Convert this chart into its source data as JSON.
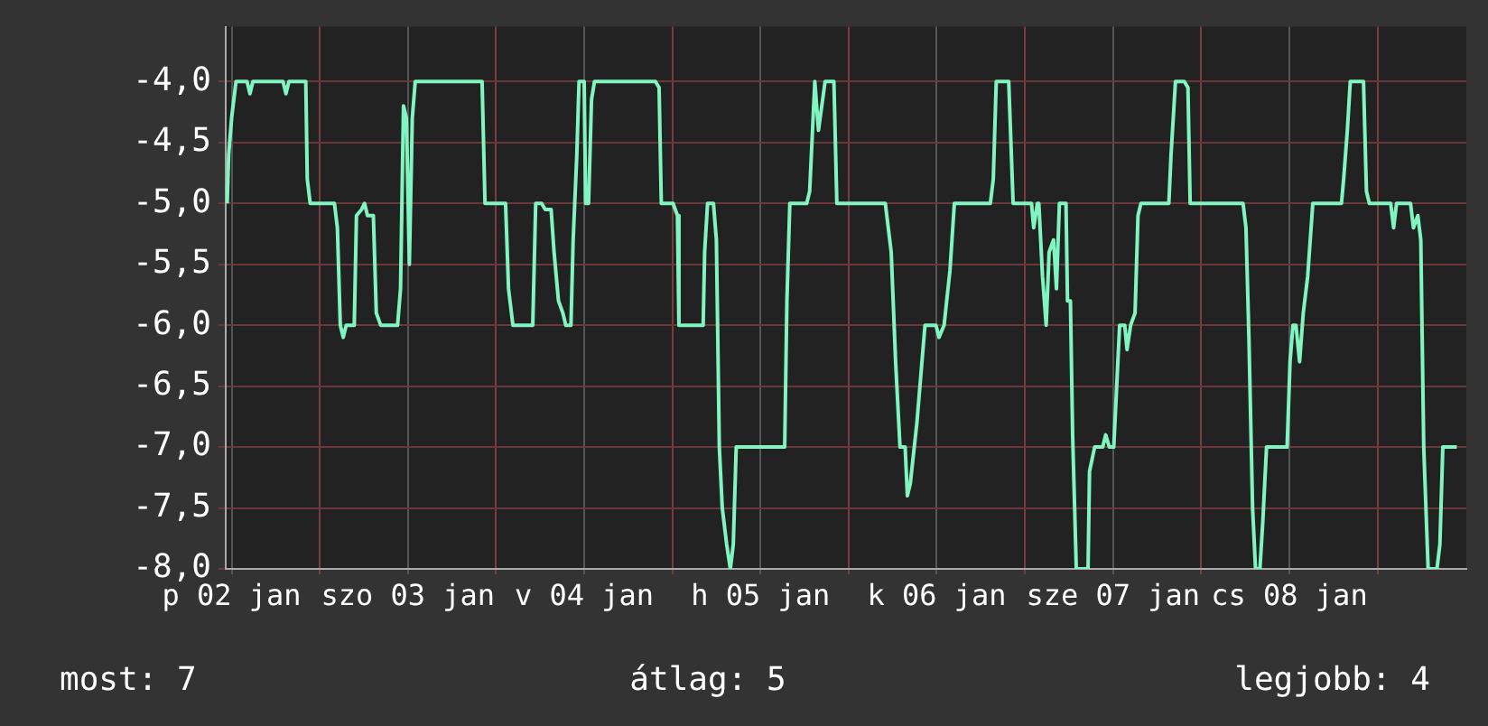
{
  "chart_data": {
    "type": "line",
    "x": [
      "--01-02T11:24",
      "--01-02T11:36",
      "--01-02T12:00",
      "--01-02T12:36",
      "--01-02T14:06",
      "--01-02T14:30",
      "--01-02T14:54",
      "--01-02T19:00",
      "--01-02T19:24",
      "--01-02T19:48",
      "--01-02T22:06",
      "--01-02T22:18",
      "--01-02T22:42",
      "--01-03T02:00",
      "--01-03T02:24",
      "--01-03T02:48",
      "--01-03T03:12",
      "--01-03T03:36",
      "--01-03T04:42",
      "--01-03T05:00",
      "--01-03T05:42",
      "--01-03T06:06",
      "--01-03T06:30",
      "--01-03T07:18",
      "--01-03T07:42",
      "--01-03T08:18",
      "--01-03T10:36",
      "--01-03T11:00",
      "--01-03T11:24",
      "--01-03T11:48",
      "--01-03T12:12",
      "--01-03T12:36",
      "--01-03T13:00",
      "--01-03T22:06",
      "--01-03T22:30",
      "--01-04T01:18",
      "--01-04T01:42",
      "--01-04T02:18",
      "--01-04T05:00",
      "--01-04T05:24",
      "--01-04T06:12",
      "--01-04T06:42",
      "--01-04T07:30",
      "--01-04T07:54",
      "--01-04T08:30",
      "--01-04T09:06",
      "--01-04T09:30",
      "--01-04T10:12",
      "--01-04T10:30",
      "--01-04T11:00",
      "--01-04T11:18",
      "--01-04T12:00",
      "--01-04T12:12",
      "--01-04T12:36",
      "--01-04T13:00",
      "--01-04T13:24",
      "--01-04T21:42",
      "--01-04T22:12",
      "--01-04T22:30",
      "--01-05T00:06",
      "--01-05T00:42",
      "--01-05T00:54",
      "--01-05T04:12",
      "--01-05T04:24",
      "--01-05T04:48",
      "--01-05T05:36",
      "--01-05T06:00",
      "--01-05T06:24",
      "--01-05T06:48",
      "--01-05T07:24",
      "--01-05T07:54",
      "--01-05T08:18",
      "--01-05T08:42",
      "--01-05T15:18",
      "--01-05T15:36",
      "--01-05T16:00",
      "--01-05T18:18",
      "--01-05T18:42",
      "--01-05T19:24",
      "--01-05T19:54",
      "--01-05T20:48",
      "--01-05T22:00",
      "--01-05T22:24",
      "--01-06T05:00",
      "--01-06T05:48",
      "--01-06T06:24",
      "--01-06T07:00",
      "--01-06T07:42",
      "--01-06T08:00",
      "--01-06T08:24",
      "--01-06T09:18",
      "--01-06T10:24",
      "--01-06T11:54",
      "--01-06T12:18",
      "--01-06T13:00",
      "--01-06T13:48",
      "--01-06T14:24",
      "--01-06T19:18",
      "--01-06T19:42",
      "--01-06T20:06",
      "--01-06T21:48",
      "--01-06T22:24",
      "--01-07T00:54",
      "--01-07T01:12",
      "--01-07T01:42",
      "--01-07T01:54",
      "--01-07T02:24",
      "--01-07T02:54",
      "--01-07T03:18",
      "--01-07T03:54",
      "--01-07T04:18",
      "--01-07T04:42",
      "--01-07T05:36",
      "--01-07T05:48",
      "--01-07T06:12",
      "--01-07T06:30",
      "--01-07T07:00",
      "--01-07T08:36",
      "--01-07T08:48",
      "--01-07T09:30",
      "--01-07T10:36",
      "--01-07T11:00",
      "--01-07T11:30",
      "--01-07T12:06",
      "--01-07T12:30",
      "--01-07T12:54",
      "--01-07T13:36",
      "--01-07T13:54",
      "--01-07T14:24",
      "--01-07T15:00",
      "--01-07T15:24",
      "--01-07T15:48",
      "--01-07T19:36",
      "--01-07T19:54",
      "--01-07T20:30",
      "--01-07T21:42",
      "--01-07T22:12",
      "--01-07T22:30",
      "--01-08T05:42",
      "--01-08T06:06",
      "--01-08T06:30",
      "--01-08T07:00",
      "--01-08T07:24",
      "--01-08T08:00",
      "--01-08T08:24",
      "--01-08T08:54",
      "--01-08T11:42",
      "--01-08T12:06",
      "--01-08T12:30",
      "--01-08T12:54",
      "--01-08T13:24",
      "--01-08T13:54",
      "--01-08T14:30",
      "--01-08T15:12",
      "--01-08T19:06",
      "--01-08T19:24",
      "--01-08T19:54",
      "--01-08T20:18",
      "--01-08T22:06",
      "--01-08T22:30",
      "--01-08T22:54",
      "--01-09T01:48",
      "--01-09T02:12",
      "--01-09T02:36",
      "--01-09T04:30",
      "--01-09T04:54",
      "--01-09T05:30",
      "--01-09T05:54",
      "--01-09T06:18",
      "--01-09T06:54",
      "--01-09T08:06",
      "--01-09T08:30",
      "--01-09T08:54",
      "--01-09T10:48"
    ],
    "series": [
      {
        "color": "#80f5c0",
        "values": [
          -5.0,
          -4.6,
          -4.3,
          -4.0,
          -4.0,
          -4.1,
          -4.0,
          -4.0,
          -4.1,
          -4.0,
          -4.0,
          -4.8,
          -5.0,
          -5.0,
          -5.2,
          -6.0,
          -6.1,
          -6.0,
          -6.0,
          -5.1,
          -5.05,
          -5.0,
          -5.1,
          -5.1,
          -5.9,
          -6.0,
          -6.0,
          -5.7,
          -4.2,
          -4.3,
          -5.5,
          -4.3,
          -4.0,
          -4.0,
          -5.0,
          -5.0,
          -5.7,
          -6.0,
          -6.0,
          -5.0,
          -5.0,
          -5.05,
          -5.05,
          -5.4,
          -5.8,
          -5.9,
          -6.0,
          -6.0,
          -5.3,
          -4.6,
          -4.0,
          -4.0,
          -5.0,
          -5.0,
          -4.15,
          -4.0,
          -4.0,
          -4.05,
          -5.0,
          -5.0,
          -5.1,
          -6.0,
          -6.0,
          -5.4,
          -5.0,
          -5.0,
          -5.3,
          -7.0,
          -7.5,
          -7.8,
          -8.0,
          -7.8,
          -7.0,
          -7.0,
          -5.8,
          -5.0,
          -5.0,
          -4.9,
          -4.0,
          -4.4,
          -4.0,
          -4.0,
          -5.0,
          -5.0,
          -5.4,
          -6.3,
          -7.0,
          -7.0,
          -7.4,
          -7.3,
          -6.8,
          -6.0,
          -6.0,
          -6.1,
          -6.0,
          -5.55,
          -5.0,
          -5.0,
          -4.8,
          -4.0,
          -4.0,
          -5.0,
          -5.0,
          -5.2,
          -5.0,
          -5.0,
          -5.6,
          -6.0,
          -5.4,
          -5.3,
          -5.7,
          -5.0,
          -5.0,
          -5.8,
          -5.8,
          -6.9,
          -8.0,
          -8.0,
          -7.2,
          -7.0,
          -7.0,
          -6.9,
          -7.0,
          -7.0,
          -6.5,
          -6.0,
          -6.0,
          -6.2,
          -6.0,
          -5.9,
          -5.1,
          -5.0,
          -5.0,
          -4.6,
          -4.0,
          -4.0,
          -4.05,
          -5.0,
          -5.0,
          -5.2,
          -6.1,
          -7.5,
          -8.0,
          -8.0,
          -7.6,
          -7.0,
          -7.0,
          -6.3,
          -6.0,
          -6.0,
          -6.3,
          -5.9,
          -5.6,
          -5.0,
          -5.0,
          -4.8,
          -4.4,
          -4.0,
          -4.0,
          -4.9,
          -5.0,
          -5.0,
          -5.2,
          -5.0,
          -5.0,
          -5.2,
          -5.1,
          -5.3,
          -7.0,
          -8.0,
          -8.0,
          -7.8,
          -7.0,
          -7.0
        ]
      }
    ],
    "xlim": [
      "--01-02T11:12",
      "--01-09T12:06"
    ],
    "xticks": [
      {
        "value": "--01-02T12:00",
        "label": "p 02 jan"
      },
      {
        "value": "--01-03T00:00",
        "label": null
      },
      {
        "value": "--01-03T12:00",
        "label": "szo 03 jan"
      },
      {
        "value": "--01-04T00:00",
        "label": null
      },
      {
        "value": "--01-04T12:00",
        "label": "v 04 jan"
      },
      {
        "value": "--01-05T00:00",
        "label": null
      },
      {
        "value": "--01-05T12:00",
        "label": "h 05 jan"
      },
      {
        "value": "--01-06T00:00",
        "label": null
      },
      {
        "value": "--01-06T12:00",
        "label": "k 06 jan"
      },
      {
        "value": "--01-07T00:00",
        "label": null
      },
      {
        "value": "--01-07T12:00",
        "label": "sze 07 jan"
      },
      {
        "value": "--01-08T00:00",
        "label": null
      },
      {
        "value": "--01-08T12:00",
        "label": "cs 08 jan"
      },
      {
        "value": "--01-09T00:00",
        "label": null
      }
    ],
    "ylim": [
      -8,
      -3.55
    ],
    "yticks": [
      {
        "value": -8,
        "label": "-8,0"
      },
      {
        "value": -7.5,
        "label": "-7,5"
      },
      {
        "value": -7,
        "label": "-7,0"
      },
      {
        "value": -6.5,
        "label": "-6,5"
      },
      {
        "value": -6,
        "label": "-6,0"
      },
      {
        "value": -5.5,
        "label": "-5,5"
      },
      {
        "value": -5,
        "label": "-5,0"
      },
      {
        "value": -4.5,
        "label": "-4,5"
      },
      {
        "value": -4,
        "label": "-4,0"
      }
    ],
    "grid": true,
    "annotations": [
      "most: 7",
      "átlag: 5",
      "legjobb: 4"
    ]
  }
}
